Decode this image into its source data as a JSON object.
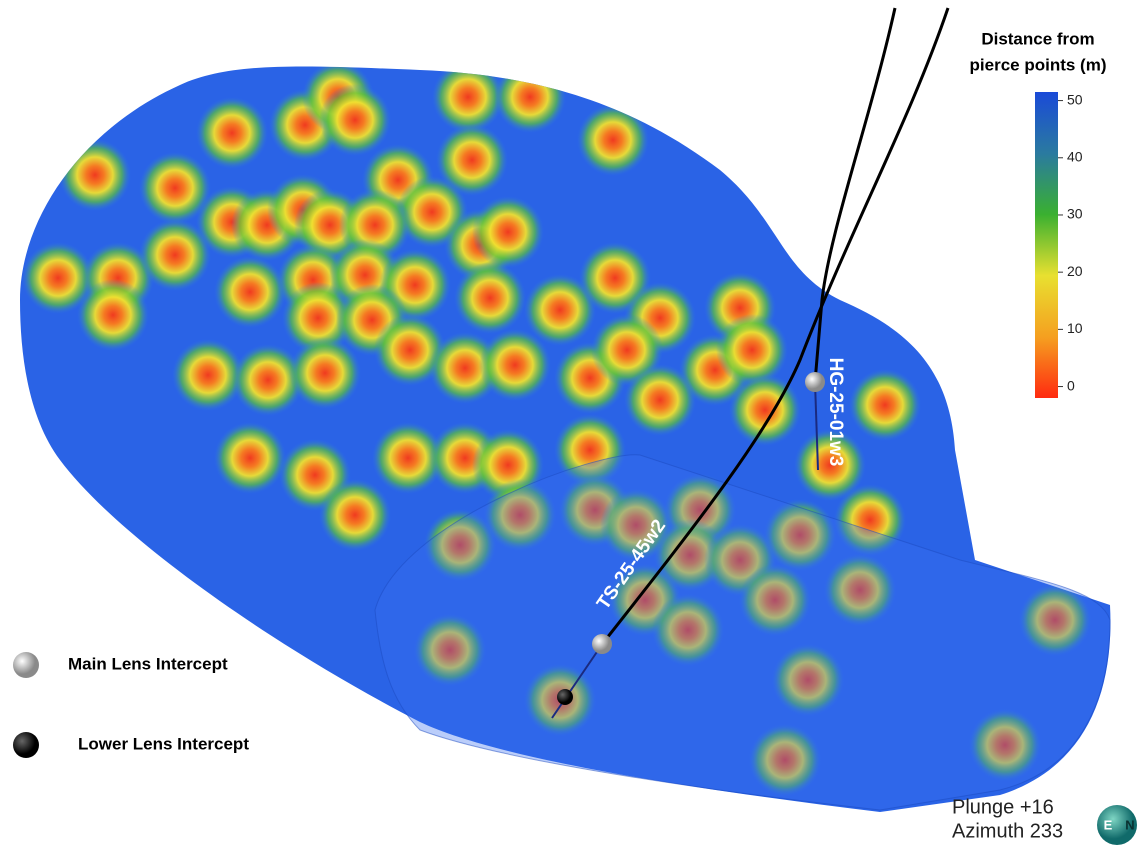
{
  "legend_title": [
    "Distance from",
    "pierce points (m)"
  ],
  "colorbar": {
    "lim": [
      -2,
      51.5
    ],
    "ticks": [
      0,
      10,
      20,
      30,
      40,
      50
    ]
  },
  "drill_holes": [
    "HG-25-01w3",
    "TS-25-45w2"
  ],
  "intercept_legend": [
    "Main Lens Intercept",
    "Lower Lens Intercept"
  ],
  "view": [
    "Plunge +16",
    "Azimuth 233"
  ],
  "compass": [
    "E",
    "N"
  ]
}
